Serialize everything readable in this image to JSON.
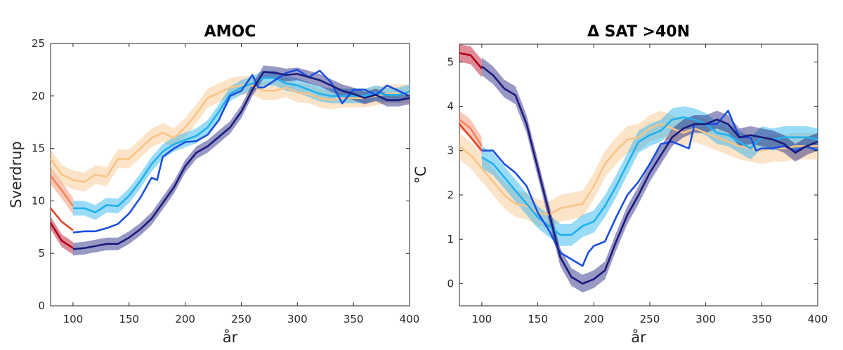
{
  "chart_data": [
    {
      "type": "line",
      "title": "AMOC",
      "xlabel": "år",
      "ylabel": "Sverdrup",
      "xlim": [
        80,
        400
      ],
      "ylim": [
        0,
        25
      ],
      "xticks": [
        100,
        150,
        200,
        250,
        300,
        350,
        400
      ],
      "yticks": [
        0,
        5,
        10,
        15,
        20,
        25
      ],
      "grid": false,
      "series": [
        {
          "color": "#f9c486",
          "band": 0.9,
          "x": [
            80,
            90,
            100,
            110,
            120,
            130,
            140,
            150,
            160,
            170,
            180,
            190,
            200,
            210,
            220,
            230,
            240,
            250,
            260,
            270,
            280,
            290,
            300,
            310,
            320,
            330,
            340,
            350,
            360,
            370,
            380,
            390,
            400
          ],
          "y": [
            14,
            12.5,
            12,
            11.8,
            12.5,
            12.3,
            14,
            14,
            15,
            16,
            16.5,
            16,
            17,
            18.3,
            19.8,
            20.3,
            20.8,
            21,
            21,
            20.5,
            20.5,
            20.8,
            20.3,
            20.2,
            19.8,
            19.6,
            19.8,
            19.8,
            19.8,
            20,
            20.2,
            20.2,
            20.2
          ]
        },
        {
          "color": "#f4845e",
          "band": 0.8,
          "x": [
            80,
            90,
            100
          ],
          "y": [
            12.4,
            11,
            9.5
          ]
        },
        {
          "color": "#e0452a",
          "band": 0,
          "x": [
            80,
            90,
            100
          ],
          "y": [
            9.3,
            8,
            7.2
          ]
        },
        {
          "color": "#b3001b",
          "band": 0.6,
          "x": [
            80,
            90,
            100
          ],
          "y": [
            7.9,
            6.2,
            5.5
          ]
        },
        {
          "color": "#1fb0f0",
          "band": 0.7,
          "x": [
            100,
            110,
            120,
            130,
            140,
            150,
            160,
            170,
            180,
            190,
            200,
            210,
            220,
            230,
            240,
            250,
            260,
            270,
            280,
            290,
            300,
            310,
            320,
            330,
            340,
            350,
            360,
            370,
            380,
            390,
            400
          ],
          "y": [
            9.3,
            9.3,
            8.9,
            9.6,
            9.5,
            10.5,
            11.9,
            13.5,
            14.7,
            15.4,
            15.8,
            16.2,
            17,
            18.5,
            20.2,
            20.8,
            21.2,
            21.7,
            21.7,
            21.2,
            21,
            20.6,
            20.2,
            20,
            20,
            20,
            20,
            20.3,
            20.1,
            20.1,
            20.4
          ]
        },
        {
          "color": "#1a4fe0",
          "band": 0,
          "x": [
            100,
            110,
            120,
            130,
            140,
            150,
            160,
            170,
            175,
            180,
            190,
            200,
            210,
            220,
            230,
            240,
            250,
            260,
            265,
            270,
            280,
            290,
            300,
            310,
            320,
            330,
            340,
            350,
            360,
            370,
            380,
            390,
            400
          ],
          "y": [
            7,
            7.1,
            7.1,
            7.4,
            7.8,
            8.8,
            10.3,
            12.2,
            12,
            14.2,
            15,
            15.6,
            15.7,
            16.3,
            17.7,
            20,
            20.5,
            22,
            20.8,
            20.8,
            21.5,
            22.2,
            22.5,
            21.8,
            22.4,
            21.3,
            19.3,
            20.6,
            20.6,
            20.1,
            21,
            20.5,
            20
          ]
        },
        {
          "color": "#1b1b7c",
          "band": 0.6,
          "x": [
            100,
            110,
            120,
            130,
            140,
            150,
            160,
            170,
            180,
            190,
            200,
            210,
            220,
            230,
            240,
            250,
            260,
            270,
            280,
            290,
            300,
            310,
            320,
            330,
            340,
            350,
            360,
            370,
            380,
            390,
            400
          ],
          "y": [
            5.4,
            5.5,
            5.7,
            5.9,
            5.9,
            6.5,
            7.3,
            8.3,
            9.8,
            11.3,
            13.3,
            14.6,
            15.2,
            16.1,
            17,
            18.5,
            20.6,
            22.3,
            22.2,
            22,
            22.1,
            21.8,
            21.5,
            21,
            20.5,
            20.2,
            19.8,
            20.1,
            19.6,
            19.6,
            19.8
          ]
        }
      ]
    },
    {
      "type": "line",
      "title": "Δ SAT >40N",
      "xlabel": "år",
      "ylabel": "°C",
      "xlim": [
        80,
        400
      ],
      "ylim": [
        -0.5,
        5.4
      ],
      "xticks": [
        100,
        150,
        200,
        250,
        300,
        350,
        400
      ],
      "yticks": [
        0,
        1,
        2,
        3,
        4,
        5
      ],
      "grid": false,
      "series": [
        {
          "color": "#f9c486",
          "band": 0.3,
          "x": [
            80,
            90,
            100,
            110,
            120,
            130,
            140,
            150,
            160,
            170,
            180,
            190,
            200,
            210,
            220,
            230,
            240,
            250,
            260,
            270,
            280,
            290,
            300,
            310,
            320,
            330,
            340,
            350,
            360,
            370,
            380,
            390,
            400
          ],
          "y": [
            3.1,
            2.9,
            2.6,
            2.3,
            2,
            1.8,
            1.75,
            1.6,
            1.55,
            1.7,
            1.75,
            1.8,
            2.2,
            2.7,
            3,
            3.25,
            3.3,
            3.5,
            3.6,
            3.5,
            3.4,
            3.5,
            3.4,
            3.3,
            3.2,
            3.1,
            3.05,
            3,
            3.05,
            3.05,
            3.1,
            3.1,
            3.1
          ]
        },
        {
          "color": "#f4845e",
          "band": 0.2,
          "x": [
            80,
            90,
            100
          ],
          "y": [
            3.7,
            3.5,
            3.1
          ]
        },
        {
          "color": "#e0452a",
          "band": 0,
          "x": [
            80,
            90,
            100
          ],
          "y": [
            3.6,
            3.3,
            3.0
          ]
        },
        {
          "color": "#b3001b",
          "band": 0.2,
          "x": [
            80,
            90,
            100
          ],
          "y": [
            5.2,
            5.15,
            4.85
          ]
        },
        {
          "color": "#1fb0f0",
          "band": 0.25,
          "x": [
            100,
            110,
            120,
            130,
            140,
            150,
            160,
            170,
            180,
            190,
            200,
            210,
            220,
            230,
            240,
            250,
            260,
            270,
            280,
            290,
            300,
            310,
            320,
            330,
            340,
            350,
            360,
            370,
            380,
            390,
            400
          ],
          "y": [
            2.85,
            2.7,
            2.4,
            2.1,
            1.8,
            1.5,
            1.3,
            1.1,
            1.1,
            1.3,
            1.4,
            1.75,
            2.2,
            2.7,
            3.2,
            3.35,
            3.45,
            3.7,
            3.75,
            3.7,
            3.6,
            3.4,
            3.35,
            3.2,
            3.05,
            3.3,
            3.25,
            3.3,
            3.3,
            3.3,
            3.25
          ]
        },
        {
          "color": "#1a4fe0",
          "band": 0,
          "x": [
            100,
            110,
            120,
            130,
            140,
            150,
            160,
            170,
            180,
            190,
            195,
            200,
            210,
            220,
            230,
            240,
            250,
            260,
            270,
            280,
            285,
            290,
            300,
            310,
            320,
            330,
            340,
            345,
            350,
            360,
            370,
            380,
            390,
            400
          ],
          "y": [
            3,
            3,
            2.7,
            2.5,
            2.2,
            1.6,
            1.2,
            0.7,
            0.55,
            0.4,
            0.7,
            0.85,
            0.95,
            1.5,
            2,
            2.3,
            2.7,
            3.15,
            3.2,
            3.1,
            3.05,
            3.6,
            3.6,
            3.6,
            3.9,
            3.3,
            3.3,
            3,
            3.05,
            3.05,
            3.1,
            3,
            3.1,
            3
          ]
        },
        {
          "color": "#1b1b7c",
          "band": 0.2,
          "x": [
            100,
            110,
            120,
            130,
            140,
            150,
            160,
            170,
            180,
            190,
            200,
            210,
            220,
            230,
            240,
            250,
            260,
            270,
            280,
            290,
            300,
            310,
            320,
            330,
            340,
            350,
            360,
            370,
            380,
            390,
            400
          ],
          "y": [
            4.9,
            4.7,
            4.4,
            4.25,
            3.6,
            2.6,
            1.6,
            0.6,
            0.15,
            0,
            0.1,
            0.3,
            0.95,
            1.55,
            2,
            2.5,
            2.9,
            3.3,
            3.5,
            3.6,
            3.6,
            3.7,
            3.6,
            3.3,
            3.35,
            3.3,
            3.25,
            3.15,
            2.95,
            3.1,
            3.2
          ]
        }
      ]
    }
  ]
}
